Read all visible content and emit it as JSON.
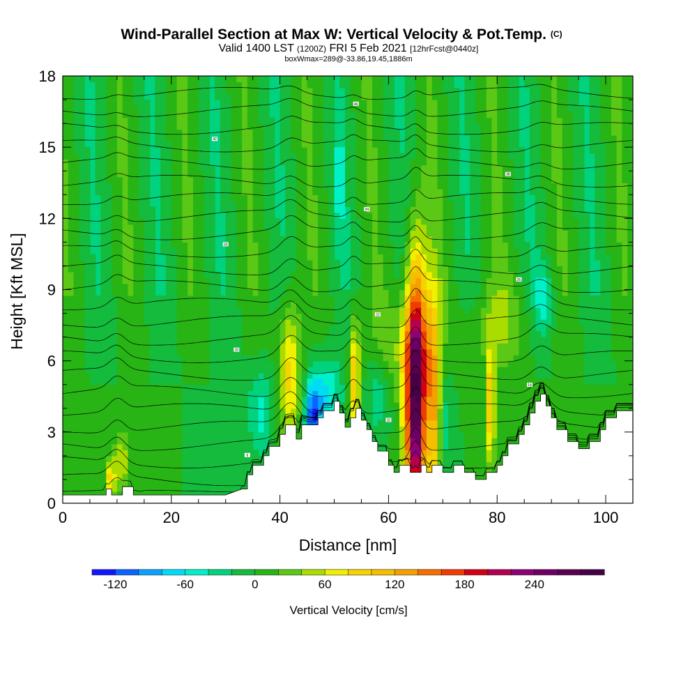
{
  "chart_data": {
    "type": "heatmap",
    "title": "Wind-Parallel Section at Max W: Vertical Velocity & Pot.Temp.",
    "title_mark": "(C)",
    "subtitle_parts": [
      "Valid 1400 LST ",
      "(1200Z)",
      " FRI 5 Feb 2021 ",
      "[12hrFcst@0440z]"
    ],
    "annotation": "boxWmax=289@-33.86,19.45,1886m",
    "xlabel": "Distance [nm]",
    "ylabel": "Height [Kft MSL]",
    "xlim": [
      0,
      105
    ],
    "ylim": [
      0,
      18
    ],
    "xticks": [
      0,
      20,
      40,
      60,
      80,
      100
    ],
    "yticks": [
      0,
      3,
      6,
      9,
      12,
      15,
      18
    ],
    "colorbar": {
      "label": "Vertical Velocity [cm/s]",
      "min": -140,
      "max": 300,
      "step": 20,
      "ticks": [
        -120,
        -60,
        0,
        60,
        120,
        180,
        240
      ],
      "colors": [
        "#1414ff",
        "#0a64ff",
        "#0aa0ff",
        "#00dcf5",
        "#00f0c8",
        "#00d27d",
        "#14bb3c",
        "#28b414",
        "#5ac814",
        "#aadc00",
        "#f0f000",
        "#f5d200",
        "#f5be00",
        "#f5a000",
        "#f56e00",
        "#f03c00",
        "#d20014",
        "#b40050",
        "#8c0078",
        "#6e0064",
        "#5a0050",
        "#460046"
      ]
    },
    "terrain_profile": {
      "x": [
        0,
        8,
        8,
        9,
        9,
        11,
        11,
        13,
        13,
        18,
        25,
        30,
        33,
        34,
        34,
        35,
        35,
        37,
        37,
        38,
        38,
        40,
        40,
        41,
        41,
        43,
        43,
        44,
        44,
        47,
        47,
        48,
        48,
        50,
        50,
        51,
        51,
        52,
        52,
        53,
        53,
        54,
        54,
        55,
        55,
        56,
        56,
        57,
        57,
        58,
        58,
        60,
        60,
        61,
        61,
        62,
        62,
        64,
        64,
        66,
        66,
        67,
        67,
        68,
        68,
        70,
        70,
        72,
        72,
        74,
        74,
        76,
        76,
        78,
        78,
        80,
        80,
        81,
        81,
        82,
        82,
        84,
        84,
        85,
        85,
        86,
        86,
        87,
        87,
        88,
        88,
        89,
        89,
        90,
        90,
        91,
        91,
        93,
        93,
        95,
        95,
        97,
        97,
        99,
        99,
        100,
        100,
        102,
        102,
        105
      ],
      "height": [
        0.35,
        0.35,
        0.6,
        0.6,
        0.35,
        0.35,
        0.7,
        0.7,
        0.35,
        0.35,
        0.35,
        0.35,
        0.6,
        0.6,
        1.2,
        1.2,
        1.6,
        1.6,
        2.0,
        2.0,
        2.4,
        2.4,
        2.9,
        2.9,
        3.3,
        3.3,
        2.7,
        2.7,
        3.3,
        3.3,
        3.6,
        3.6,
        3.9,
        3.9,
        4.3,
        4.3,
        3.8,
        3.8,
        3.2,
        3.2,
        3.6,
        3.6,
        4.0,
        4.0,
        3.5,
        3.5,
        3.1,
        3.1,
        2.6,
        2.6,
        2.2,
        2.2,
        1.6,
        1.6,
        1.3,
        1.3,
        1.6,
        1.6,
        1.3,
        1.3,
        1.6,
        1.6,
        1.3,
        1.3,
        1.6,
        1.6,
        1.3,
        1.3,
        1.6,
        1.6,
        1.3,
        1.3,
        1.0,
        1.0,
        1.3,
        1.3,
        1.6,
        1.6,
        2.0,
        2.0,
        2.5,
        2.5,
        2.9,
        2.9,
        3.3,
        3.3,
        3.8,
        3.8,
        4.3,
        4.3,
        4.6,
        4.6,
        4.1,
        4.1,
        3.6,
        3.6,
        3.1,
        3.1,
        2.6,
        2.6,
        2.3,
        2.3,
        2.6,
        2.6,
        3.1,
        3.1,
        3.6,
        3.6,
        3.9,
        3.9
      ]
    },
    "vertical_velocity_features": [
      {
        "x": 65.0,
        "z": 4.6,
        "peak": 289,
        "width_nm": 2.0,
        "depth_kft": 5.5
      },
      {
        "x": 68.2,
        "z": 4.4,
        "peak": 120,
        "width_nm": 1.5,
        "depth_kft": 4.5
      },
      {
        "x": 53.8,
        "z": 5.3,
        "peak": 110,
        "width_nm": 0.9,
        "depth_kft": 2.5
      },
      {
        "x": 78.8,
        "z": 4.0,
        "peak": 110,
        "width_nm": 0.8,
        "depth_kft": 2.5
      },
      {
        "x": 41.8,
        "z": 5.6,
        "peak": 90,
        "width_nm": 2.0,
        "depth_kft": 3.0
      },
      {
        "x": 8.8,
        "z": 1.0,
        "peak": 90,
        "width_nm": 0.8,
        "depth_kft": 0.8
      },
      {
        "x": 10.8,
        "z": 1.8,
        "peak": 60,
        "width_nm": 1.5,
        "depth_kft": 1.2
      },
      {
        "x": 46.0,
        "z": 3.4,
        "peak": -110,
        "width_nm": 1.5,
        "depth_kft": 1.6
      },
      {
        "x": 48.5,
        "z": 4.6,
        "peak": -60,
        "width_nm": 3.0,
        "depth_kft": 1.6
      },
      {
        "x": 36.5,
        "z": 3.8,
        "peak": -45,
        "width_nm": 2.5,
        "depth_kft": 2.0
      },
      {
        "x": 67.0,
        "z": 3.3,
        "peak": -45,
        "width_nm": 0.8,
        "depth_kft": 2.0
      },
      {
        "x": 70.5,
        "z": 3.3,
        "peak": -40,
        "width_nm": 1.2,
        "depth_kft": 2.0
      },
      {
        "x": 88.5,
        "z": 8.6,
        "peak": -45,
        "width_nm": 1.8,
        "depth_kft": 1.5
      },
      {
        "x": 58.0,
        "z": 4.5,
        "peak": -40,
        "width_nm": 2.0,
        "depth_kft": 1.5
      },
      {
        "x": 51.0,
        "z": 13.5,
        "peak": -40,
        "width_nm": 0.8,
        "depth_kft": 2.5
      },
      {
        "x": 80.0,
        "z": 7.5,
        "peak": 35,
        "width_nm": 6.0,
        "depth_kft": 2.0
      },
      {
        "x": 62.0,
        "z": 6.5,
        "peak": 30,
        "width_nm": 5.0,
        "depth_kft": 2.0
      }
    ],
    "theta_contours": {
      "levels": [
        2,
        4,
        6,
        8,
        10,
        12,
        14,
        16,
        18,
        20,
        22,
        24,
        26,
        28,
        30,
        32,
        34,
        36,
        38,
        40,
        42,
        44,
        46,
        48
      ],
      "marked_levels": [
        6,
        10,
        14,
        18,
        22,
        26,
        30,
        34,
        38,
        42,
        46
      ]
    }
  }
}
